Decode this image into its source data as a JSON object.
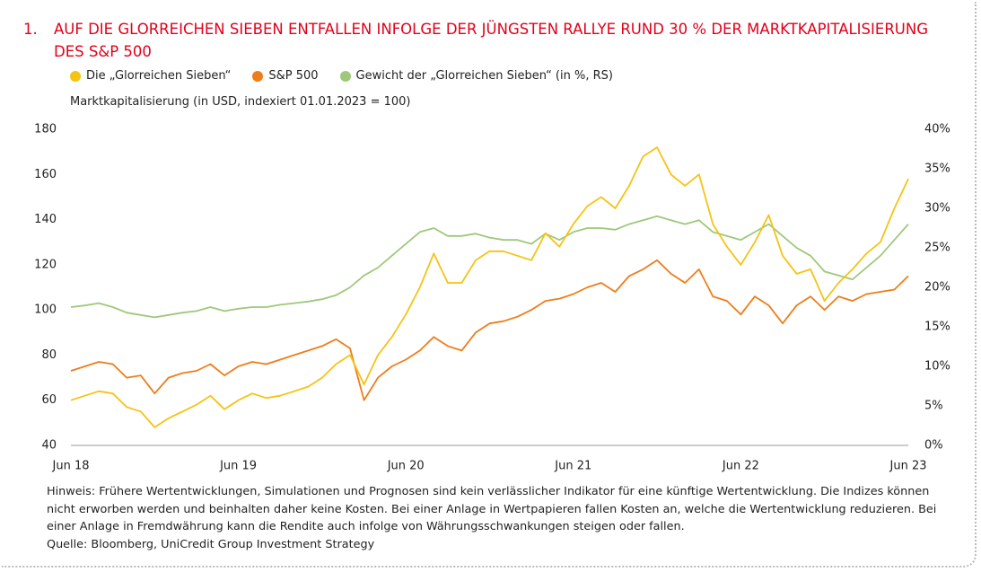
{
  "chart_data": {
    "type": "line",
    "title_number": "1.",
    "title": "AUF DIE GLORREICHEN SIEBEN ENTFALLEN INFOLGE DER JÜNGSTEN RALLYE RUND 30 % DER MARKTKAPITALISIERUNG DES S&P 500",
    "y_label": "Marktkapitalisierung (in USD, indexiert 01.01.2023 = 100)",
    "categories": [
      "Jun 18",
      null,
      null,
      null,
      null,
      null,
      null,
      null,
      null,
      null,
      null,
      null,
      "Jun 19",
      null,
      null,
      null,
      null,
      null,
      null,
      null,
      null,
      null,
      null,
      null,
      "Jun 20",
      null,
      null,
      null,
      null,
      null,
      null,
      null,
      null,
      null,
      null,
      null,
      "Jun 21",
      null,
      null,
      null,
      null,
      null,
      null,
      null,
      null,
      null,
      null,
      null,
      "Jun 22",
      null,
      null,
      null,
      null,
      null,
      null,
      null,
      null,
      null,
      null,
      null,
      "Jun 23"
    ],
    "series": [
      {
        "name": "Die „Glorreichen Sieben“",
        "color": "#f5c314",
        "values": [
          60,
          62,
          64,
          63,
          57,
          55,
          48,
          52,
          55,
          58,
          62,
          56,
          60,
          63,
          61,
          62,
          64,
          66,
          70,
          76,
          80,
          67,
          80,
          88,
          98,
          110,
          125,
          112,
          112,
          122,
          126,
          126,
          124,
          122,
          134,
          128,
          138,
          146,
          150,
          145,
          155,
          168,
          172,
          160,
          155,
          160,
          138,
          128,
          120,
          130,
          142,
          124,
          116,
          118,
          104,
          112,
          118,
          125,
          130,
          145,
          158
        ]
      },
      {
        "name": "S&P 500",
        "color": "#ee7d1a",
        "values": [
          73,
          75,
          77,
          76,
          70,
          71,
          63,
          70,
          72,
          73,
          76,
          71,
          75,
          77,
          76,
          78,
          80,
          82,
          84,
          87,
          83,
          60,
          70,
          75,
          78,
          82,
          88,
          84,
          82,
          90,
          94,
          95,
          97,
          100,
          104,
          105,
          107,
          110,
          112,
          108,
          115,
          118,
          122,
          116,
          112,
          118,
          106,
          104,
          98,
          106,
          102,
          94,
          102,
          106,
          100,
          106,
          104,
          107,
          108,
          109,
          115
        ]
      },
      {
        "name": "Gewicht der „Glorreichen Sieben“ (in %, RS)",
        "color": "#9fc87a",
        "axis": "y2",
        "values": [
          17.5,
          17.7,
          18,
          17.5,
          16.8,
          16.5,
          16.2,
          16.5,
          16.8,
          17,
          17.5,
          17,
          17.3,
          17.5,
          17.5,
          17.8,
          18,
          18.2,
          18.5,
          19,
          20,
          21.5,
          22.5,
          24,
          25.5,
          27,
          27.5,
          26.5,
          26.5,
          26.8,
          26.3,
          26,
          26,
          25.5,
          26.8,
          26,
          27,
          27.5,
          27.5,
          27.3,
          28,
          28.5,
          29,
          28.5,
          28,
          28.5,
          27,
          26.5,
          26,
          27,
          28,
          26.5,
          25,
          24,
          22,
          21.5,
          21,
          22.5,
          24,
          26,
          28
        ]
      }
    ],
    "ylim": [
      40,
      180
    ],
    "yticks": [
      40,
      60,
      80,
      100,
      120,
      140,
      160,
      180
    ],
    "y2lim": [
      0,
      40
    ],
    "y2ticks": [
      {
        "value": 0,
        "label": "0%"
      },
      {
        "value": 5,
        "label": "5%"
      },
      {
        "value": 10,
        "label": "10%"
      },
      {
        "value": 15,
        "label": "15%"
      },
      {
        "value": 20,
        "label": "20%"
      },
      {
        "value": 25,
        "label": "25%"
      },
      {
        "value": 30,
        "label": "30%"
      },
      {
        "value": 35,
        "label": "35%"
      },
      {
        "value": 40,
        "label": "40%"
      }
    ],
    "grid": false,
    "note": "Hinweis: Frühere Wertentwicklungen, Simulationen und Prognosen sind kein verlässlicher Indikator für eine künftige Wertentwicklung. Die Indizes können nicht erworben werden und beinhalten daher keine Kosten. Bei einer Anlage in Wertpapieren fallen Kosten an, welche die Wertentwicklung reduzieren. Bei einer Anlage in Fremdwährung kann die Rendite auch infolge von Währungsschwankungen steigen oder fallen.",
    "source": "Quelle: Bloomberg, UniCredit Group Investment Strategy"
  }
}
